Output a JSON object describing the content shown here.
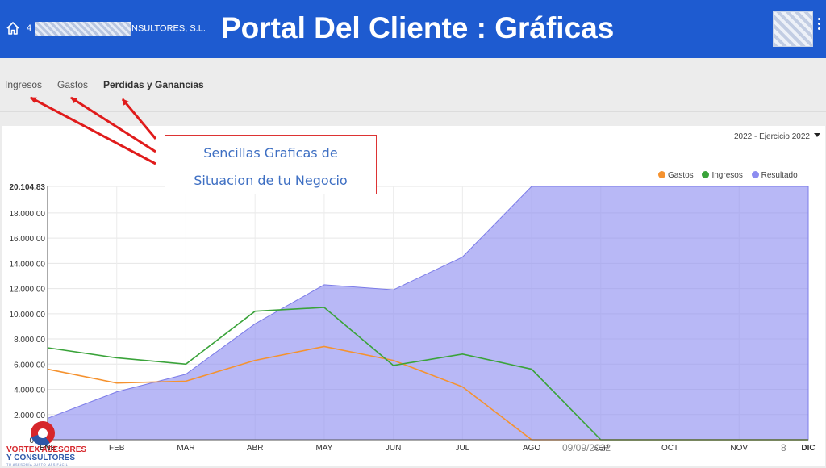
{
  "header": {
    "company_prefix": "4",
    "company_suffix": "NSULTORES, S.L.",
    "title": "Portal Del Cliente : Gráficas",
    "home_icon": "home-icon",
    "menu_icon": "kebab-menu-icon",
    "color": "#1e5bd0"
  },
  "tabs": [
    {
      "label": "Ingresos"
    },
    {
      "label": "Gastos"
    },
    {
      "label": "Perdidas y Ganancias",
      "active": true
    }
  ],
  "filter": {
    "selected": "2022 - Ejercicio 2022"
  },
  "callout": {
    "line1": "Sencillas Graficas de",
    "line2": "Situacion de tu Negocio",
    "border_color": "#dd3333"
  },
  "logo": {
    "line1": "VORTEX ASESORES",
    "line2": "Y CONSULTORES",
    "line3": "TU ASESORÍA JUSTO MÁS FÁCIL"
  },
  "footer": {
    "date": "09/09/2022",
    "page": "8"
  },
  "chart_data": {
    "type": "area",
    "categories": [
      "ENE",
      "FEB",
      "MAR",
      "ABR",
      "MAY",
      "JUN",
      "JUL",
      "AGO",
      "SEP",
      "OCT",
      "NOV",
      "DIC"
    ],
    "ylim": [
      0,
      20104.83
    ],
    "yticks": [
      "2.000,00",
      "4.000,00",
      "6.000,00",
      "8.000,00",
      "10.000,00",
      "12.000,00",
      "14.000,00",
      "16.000,00",
      "18.000,00",
      "20.104,83"
    ],
    "ytick_values": [
      2000,
      4000,
      6000,
      8000,
      10000,
      12000,
      14000,
      16000,
      18000,
      20104.83
    ],
    "ytick_label_first": "0,00",
    "legend_position": "top-right",
    "grid": true,
    "series": [
      {
        "name": "Gastos",
        "color": "#f5922f",
        "kind": "line",
        "values": [
          5600,
          4500,
          4650,
          6300,
          7400,
          6300,
          4200,
          0,
          0,
          0,
          0,
          0
        ]
      },
      {
        "name": "Ingresos",
        "color": "#3aa33a",
        "kind": "line",
        "values": [
          7300,
          6500,
          6000,
          10200,
          10500,
          5900,
          6800,
          5600,
          0,
          0,
          0,
          0
        ]
      },
      {
        "name": "Resultado",
        "color": "#8c8cf0",
        "kind": "area",
        "values": [
          1700,
          3800,
          5200,
          9200,
          12300,
          11900,
          14500,
          20104.83,
          20104.83,
          20104.83,
          20104.83,
          20104.83
        ]
      }
    ]
  }
}
